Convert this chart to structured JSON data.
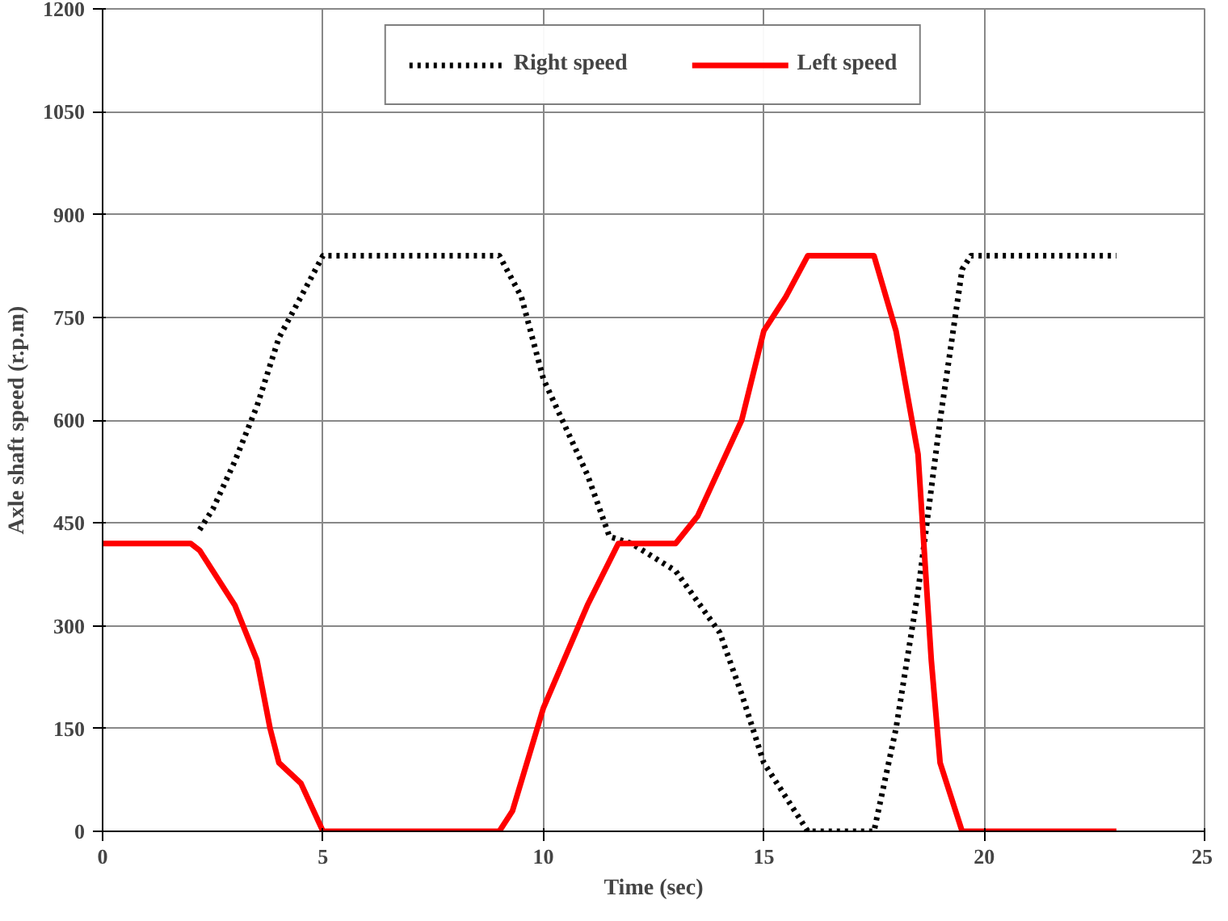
{
  "chart_data": {
    "type": "line",
    "xlabel": "Time (sec)",
    "ylabel": "Axle shaft speed (r.p.m)",
    "xlim": [
      0,
      25
    ],
    "xticks": [
      0,
      5,
      10,
      15,
      20,
      25
    ],
    "ylim": [
      0,
      1200
    ],
    "yticks": [
      0,
      150,
      300,
      450,
      600,
      750,
      900,
      1050,
      1200
    ],
    "grid": true,
    "legend": "top",
    "marker": "none",
    "series": [
      {
        "name": "Right speed",
        "color": "#000000",
        "line_style": "dotted",
        "x": [
          2.2,
          2.5,
          3,
          3.5,
          4,
          4.5,
          5,
          9,
          9.5,
          10,
          11,
          11.5,
          12,
          13,
          14,
          14.5,
          15,
          15.5,
          16,
          17.5,
          18,
          18.5,
          19,
          19.5,
          19.7,
          23
        ],
        "values": [
          440,
          470,
          540,
          620,
          720,
          780,
          840,
          840,
          780,
          660,
          520,
          430,
          420,
          380,
          290,
          200,
          100,
          50,
          0,
          0,
          150,
          350,
          600,
          820,
          840,
          840
        ]
      },
      {
        "name": "Left speed",
        "color": "#ff0000",
        "line_style": "solid",
        "x": [
          0,
          2,
          2.2,
          3,
          3.5,
          3.8,
          4,
          4.5,
          5,
          9,
          9.3,
          10,
          11,
          11.7,
          13,
          13.5,
          14,
          14.5,
          15,
          15.5,
          16,
          17.5,
          18,
          18.5,
          18.8,
          19,
          19.5,
          23
        ],
        "values": [
          420,
          420,
          410,
          330,
          250,
          150,
          100,
          70,
          0,
          0,
          30,
          180,
          330,
          420,
          420,
          460,
          530,
          600,
          730,
          780,
          840,
          840,
          730,
          550,
          250,
          100,
          0,
          0
        ]
      }
    ]
  }
}
